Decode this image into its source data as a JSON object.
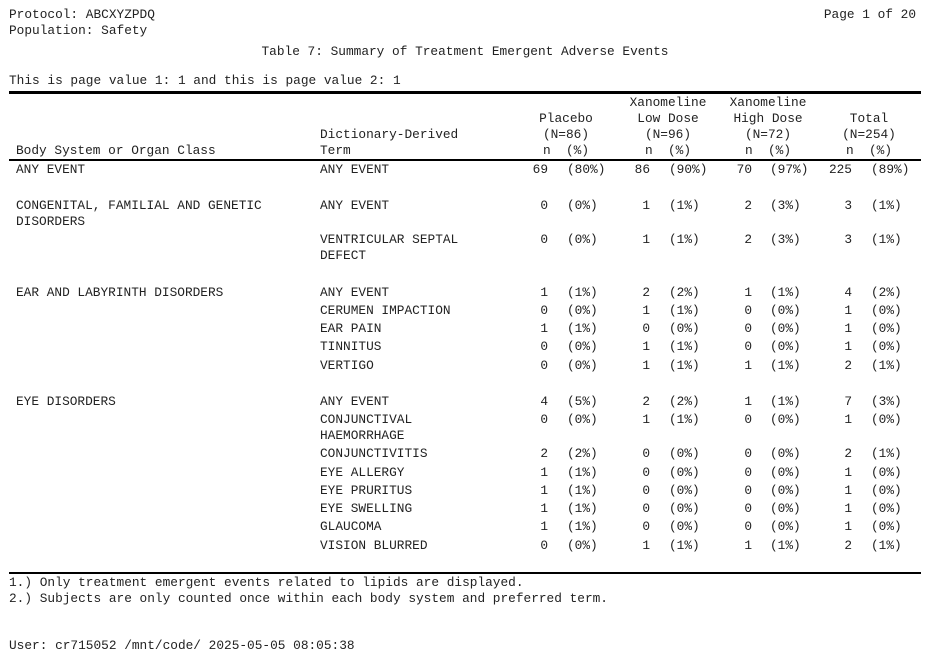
{
  "header": {
    "protocol": "Protocol: ABCXYZPDQ",
    "population": "Population: Safety",
    "page": "Page 1 of 20",
    "title": "Table 7: Summary of Treatment Emergent Adverse Events",
    "page_values": "This is page value 1: 1 and this is page value 2: 1"
  },
  "columns": {
    "soc": "Body System or Organ Class",
    "term_line1": "Dictionary-Derived",
    "term_line2": "Term",
    "placebo": [
      "Placebo",
      "(N=86)",
      "n  (%)"
    ],
    "low": [
      "Xanomeline",
      "Low Dose",
      "(N=96)",
      "n  (%)"
    ],
    "high": [
      "Xanomeline",
      "High Dose",
      "(N=72)",
      "n  (%)"
    ],
    "total": [
      "Total",
      "(N=254)",
      "n  (%)"
    ]
  },
  "rows": [
    {
      "soc": "ANY EVENT",
      "term": "ANY EVENT",
      "pn": "69",
      "pp": "(80%)",
      "ln": "86",
      "lp": "(90%)",
      "hn": "70",
      "hp": "(97%)",
      "tn": "225",
      "tp": "(89%)"
    },
    {
      "soc": "CONGENITAL, FAMILIAL AND GENETIC",
      "soc2": "DISORDERS",
      "term": "ANY EVENT",
      "pn": "0",
      "pp": "(0%)",
      "ln": "1",
      "lp": "(1%)",
      "hn": "2",
      "hp": "(3%)",
      "tn": "3",
      "tp": "(1%)"
    },
    {
      "term": "VENTRICULAR SEPTAL",
      "term2": "DEFECT",
      "pn": "0",
      "pp": "(0%)",
      "ln": "1",
      "lp": "(1%)",
      "hn": "2",
      "hp": "(3%)",
      "tn": "3",
      "tp": "(1%)"
    },
    {
      "soc": "EAR AND LABYRINTH DISORDERS",
      "term": "ANY EVENT",
      "pn": "1",
      "pp": "(1%)",
      "ln": "2",
      "lp": "(2%)",
      "hn": "1",
      "hp": "(1%)",
      "tn": "4",
      "tp": "(2%)"
    },
    {
      "term": "CERUMEN IMPACTION",
      "pn": "0",
      "pp": "(0%)",
      "ln": "1",
      "lp": "(1%)",
      "hn": "0",
      "hp": "(0%)",
      "tn": "1",
      "tp": "(0%)"
    },
    {
      "term": "EAR PAIN",
      "pn": "1",
      "pp": "(1%)",
      "ln": "0",
      "lp": "(0%)",
      "hn": "0",
      "hp": "(0%)",
      "tn": "1",
      "tp": "(0%)"
    },
    {
      "term": "TINNITUS",
      "pn": "0",
      "pp": "(0%)",
      "ln": "1",
      "lp": "(1%)",
      "hn": "0",
      "hp": "(0%)",
      "tn": "1",
      "tp": "(0%)"
    },
    {
      "term": "VERTIGO",
      "pn": "0",
      "pp": "(0%)",
      "ln": "1",
      "lp": "(1%)",
      "hn": "1",
      "hp": "(1%)",
      "tn": "2",
      "tp": "(1%)"
    },
    {
      "soc": "EYE DISORDERS",
      "term": "ANY EVENT",
      "pn": "4",
      "pp": "(5%)",
      "ln": "2",
      "lp": "(2%)",
      "hn": "1",
      "hp": "(1%)",
      "tn": "7",
      "tp": "(3%)"
    },
    {
      "term": "CONJUNCTIVAL",
      "term2": "HAEMORRHAGE",
      "pn": "0",
      "pp": "(0%)",
      "ln": "1",
      "lp": "(1%)",
      "hn": "0",
      "hp": "(0%)",
      "tn": "1",
      "tp": "(0%)"
    },
    {
      "term": "CONJUNCTIVITIS",
      "pn": "2",
      "pp": "(2%)",
      "ln": "0",
      "lp": "(0%)",
      "hn": "0",
      "hp": "(0%)",
      "tn": "2",
      "tp": "(1%)"
    },
    {
      "term": "EYE ALLERGY",
      "pn": "1",
      "pp": "(1%)",
      "ln": "0",
      "lp": "(0%)",
      "hn": "0",
      "hp": "(0%)",
      "tn": "1",
      "tp": "(0%)"
    },
    {
      "term": "EYE PRURITUS",
      "pn": "1",
      "pp": "(1%)",
      "ln": "0",
      "lp": "(0%)",
      "hn": "0",
      "hp": "(0%)",
      "tn": "1",
      "tp": "(0%)"
    },
    {
      "term": "EYE SWELLING",
      "pn": "1",
      "pp": "(1%)",
      "ln": "0",
      "lp": "(0%)",
      "hn": "0",
      "hp": "(0%)",
      "tn": "1",
      "tp": "(0%)"
    },
    {
      "term": "GLAUCOMA",
      "pn": "1",
      "pp": "(1%)",
      "ln": "0",
      "lp": "(0%)",
      "hn": "0",
      "hp": "(0%)",
      "tn": "1",
      "tp": "(0%)"
    },
    {
      "term": "VISION BLURRED",
      "pn": "0",
      "pp": "(0%)",
      "ln": "1",
      "lp": "(1%)",
      "hn": "1",
      "hp": "(1%)",
      "tn": "2",
      "tp": "(1%)"
    }
  ],
  "footnotes": [
    "1.) Only treatment emergent events related to lipids are displayed.",
    "2.) Subjects are only counted once within each body system and preferred term."
  ],
  "user_line": "User: cr715052 /mnt/code/ 2025-05-05 08:05:38"
}
